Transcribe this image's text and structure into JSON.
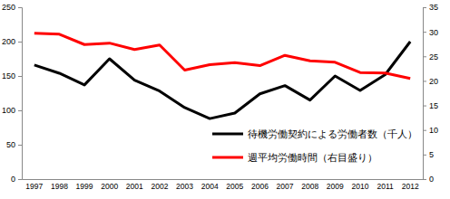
{
  "chart_data": {
    "type": "line",
    "categories": [
      "1997",
      "1998",
      "1999",
      "2000",
      "2001",
      "2002",
      "2003",
      "2004",
      "2005",
      "2006",
      "2007",
      "2008",
      "2009",
      "2010",
      "2011",
      "2012"
    ],
    "series": [
      {
        "name": "待機労働契約による労働者数（千人）",
        "color": "#000000",
        "values": [
          166,
          154,
          137,
          175,
          144,
          128,
          104,
          88,
          96,
          124,
          136,
          115,
          150,
          129,
          152,
          200
        ]
      },
      {
        "name": "週平均労働時間（右目盛り）",
        "color": "#ff0000",
        "axis": "y2",
        "values": [
          29.7,
          29.5,
          27.4,
          27.7,
          26.4,
          27.3,
          22.2,
          23.3,
          23.7,
          23.1,
          25.2,
          24.1,
          23.8,
          21.7,
          21.6,
          20.5
        ]
      }
    ],
    "ylim": [
      0,
      250
    ],
    "yticks": [
      0,
      50,
      100,
      150,
      200,
      250
    ],
    "y2lim": [
      0,
      35
    ],
    "y2ticks": [
      0,
      5,
      10,
      15,
      20,
      25,
      30,
      35
    ],
    "legend": "lower right"
  }
}
